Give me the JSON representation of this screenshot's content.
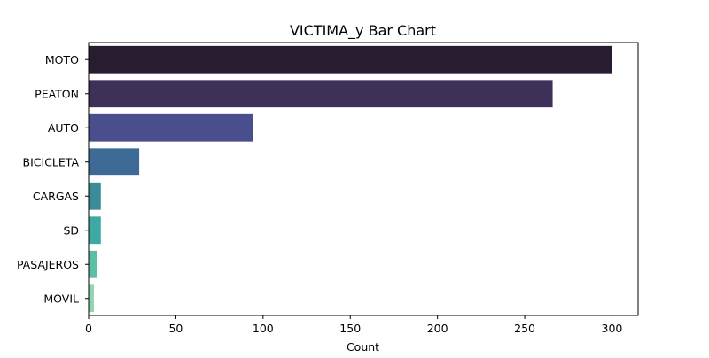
{
  "chart_data": {
    "type": "bar",
    "orientation": "horizontal",
    "title": "VICTIMA_y Bar Chart",
    "xlabel": "Count",
    "ylabel": "",
    "categories": [
      "MOTO",
      "PEATON",
      "AUTO",
      "BICICLETA",
      "CARGAS",
      "SD",
      "PASAJEROS",
      "MOVIL"
    ],
    "values": [
      300,
      266,
      94,
      29,
      7,
      7,
      5,
      3
    ],
    "colors": [
      "#271c30",
      "#3d3158",
      "#4a4e8d",
      "#3e6b96",
      "#3b8b99",
      "#3ea8a3",
      "#5bbfa5",
      "#8fd6b0"
    ],
    "xlim": [
      0,
      315
    ],
    "xticks": [
      0,
      50,
      100,
      150,
      200,
      250,
      300
    ],
    "grid": false,
    "legend": false
  }
}
